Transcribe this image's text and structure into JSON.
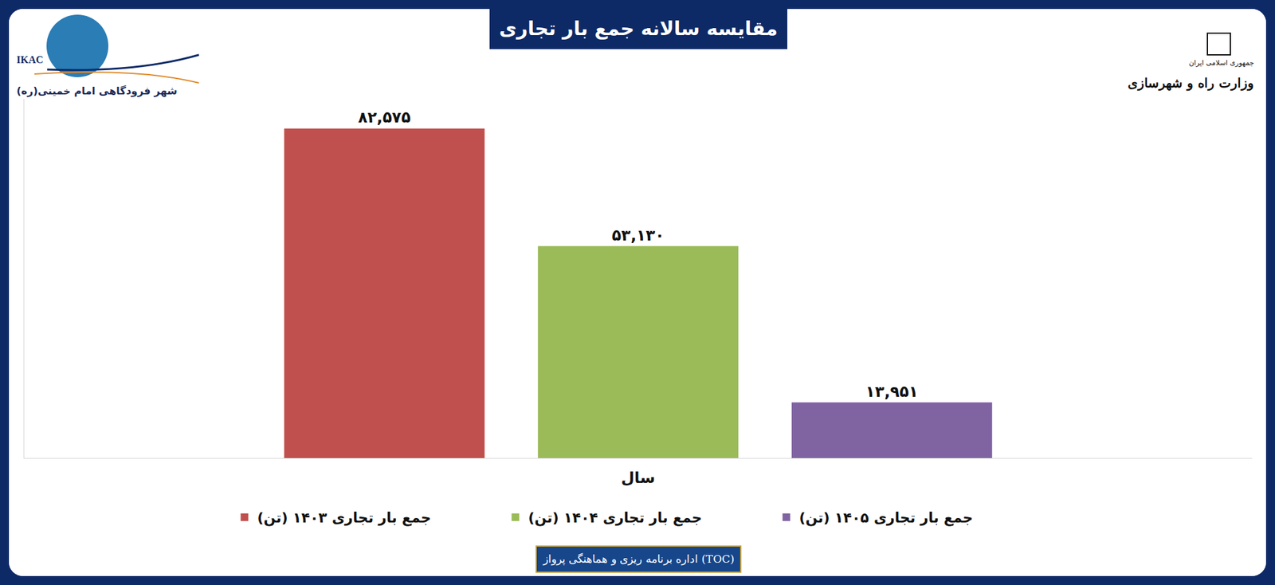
{
  "chart_data": {
    "type": "bar",
    "title": "مقایسه سالانه جمع بار تجاری",
    "xlabel": "سال",
    "categories": [
      null
    ],
    "series": [
      {
        "name": "جمع بار تجاری ۱۴۰۳ (تن)",
        "color": "#c0504d",
        "values": [
          82575
        ],
        "value_labels": [
          "۸۲,۵۷۵"
        ]
      },
      {
        "name": "جمع بار تجاری ۱۴۰۴ (تن)",
        "color": "#9bbb59",
        "values": [
          53130
        ],
        "value_labels": [
          "۵۳,۱۳۰"
        ]
      },
      {
        "name": "جمع بار تجاری ۱۴۰۵ (تن)",
        "color": "#8064a2",
        "values": [
          13951
        ],
        "value_labels": [
          "۱۳,۹۵۱"
        ]
      }
    ],
    "ylim": [
      0,
      90000
    ],
    "yticks": [],
    "tick_labels": false,
    "grid": false,
    "legend": "bottom",
    "data_labels": true,
    "annotations": {
      "logo_left": "IKAC",
      "logo_left_caption": "شهر فرودگاهی امام خمینی(ره)",
      "logo_right_small": "جمهوری اسلامی ایران",
      "logo_right": "وزارت راه و شهرسازی",
      "footer": "اداره برنامه ریزی و هماهنگی پرواز (TOC)"
    }
  }
}
